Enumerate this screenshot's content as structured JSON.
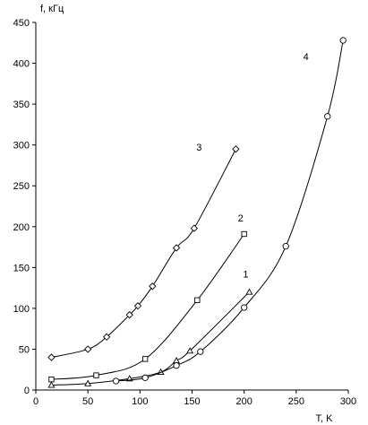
{
  "chart_data": {
    "type": "line",
    "title": "",
    "xlabel": "T, K",
    "ylabel": "f, кГц",
    "xlim": [
      0,
      300
    ],
    "ylim": [
      0,
      450
    ],
    "xticks": [
      "0",
      "50",
      "100",
      "150",
      "200",
      "250",
      "300"
    ],
    "yticks": [
      "0",
      "50",
      "100",
      "150",
      "200",
      "250",
      "300",
      "350",
      "400",
      "450"
    ],
    "grid": false,
    "legend": "none",
    "series": [
      {
        "label": "1",
        "marker": "triangle",
        "points": [
          [
            15,
            6
          ],
          [
            50,
            8
          ],
          [
            90,
            14
          ],
          [
            120,
            22
          ],
          [
            135,
            36
          ],
          [
            148,
            48
          ],
          [
            205,
            120
          ]
        ]
      },
      {
        "label": "2",
        "marker": "square",
        "points": [
          [
            15,
            13
          ],
          [
            58,
            18
          ],
          [
            105,
            38
          ],
          [
            155,
            110
          ],
          [
            200,
            191
          ]
        ]
      },
      {
        "label": "3",
        "marker": "diamond",
        "points": [
          [
            15,
            40
          ],
          [
            50,
            50
          ],
          [
            68,
            65
          ],
          [
            90,
            92
          ],
          [
            98,
            103
          ],
          [
            112,
            127
          ],
          [
            135,
            174
          ],
          [
            152,
            198
          ],
          [
            192,
            295
          ]
        ]
      },
      {
        "label": "4",
        "marker": "circle",
        "points": [
          [
            77,
            11
          ],
          [
            105,
            15
          ],
          [
            135,
            30
          ],
          [
            158,
            47
          ],
          [
            200,
            101
          ],
          [
            240,
            176
          ],
          [
            280,
            335
          ],
          [
            295,
            428
          ]
        ]
      }
    ]
  }
}
